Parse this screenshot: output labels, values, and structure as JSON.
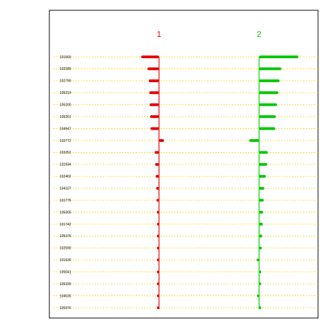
{
  "chart_data": {
    "type": "bar",
    "orientation": "horizontal-diverging",
    "title": "",
    "xlabel": "",
    "ylabel": "",
    "grid": true,
    "categories": [
      "101660",
      "102289",
      "102790",
      "105219",
      "105200",
      "105201",
      "104947",
      "102772",
      "103252",
      "101934",
      "102402",
      "104107",
      "101776",
      "105305",
      "101742",
      "105376",
      "102590",
      "101630",
      "105041",
      "105339",
      "104535",
      "105376"
    ],
    "columns": [
      {
        "label": "1",
        "color": "#ff0000",
        "bar_color": "#e60000",
        "max_abs": 10
      },
      {
        "label": "2",
        "color": "#00cc00",
        "bar_color": "#00c800",
        "max_abs": 10
      }
    ],
    "series": [
      {
        "column": "1",
        "values": [
          -10,
          -6.5,
          -5.8,
          -5.5,
          -5.3,
          -5,
          -4.8,
          2.8,
          -2.5,
          -2.2,
          -1.9,
          -1.6,
          -1.4,
          -1.2,
          -1.1,
          -0.9,
          -0.7,
          -0.6,
          -0.5,
          -0.4,
          -0.3,
          -0.2
        ]
      },
      {
        "column": "2",
        "values": [
          22,
          12.5,
          11.5,
          10.8,
          10,
          9.4,
          9.1,
          -5.5,
          4.9,
          4.6,
          3.8,
          2.9,
          2.6,
          2.3,
          2.1,
          1.8,
          1.5,
          -1.4,
          1.0,
          0.9,
          -0.7,
          0.5
        ]
      }
    ]
  }
}
